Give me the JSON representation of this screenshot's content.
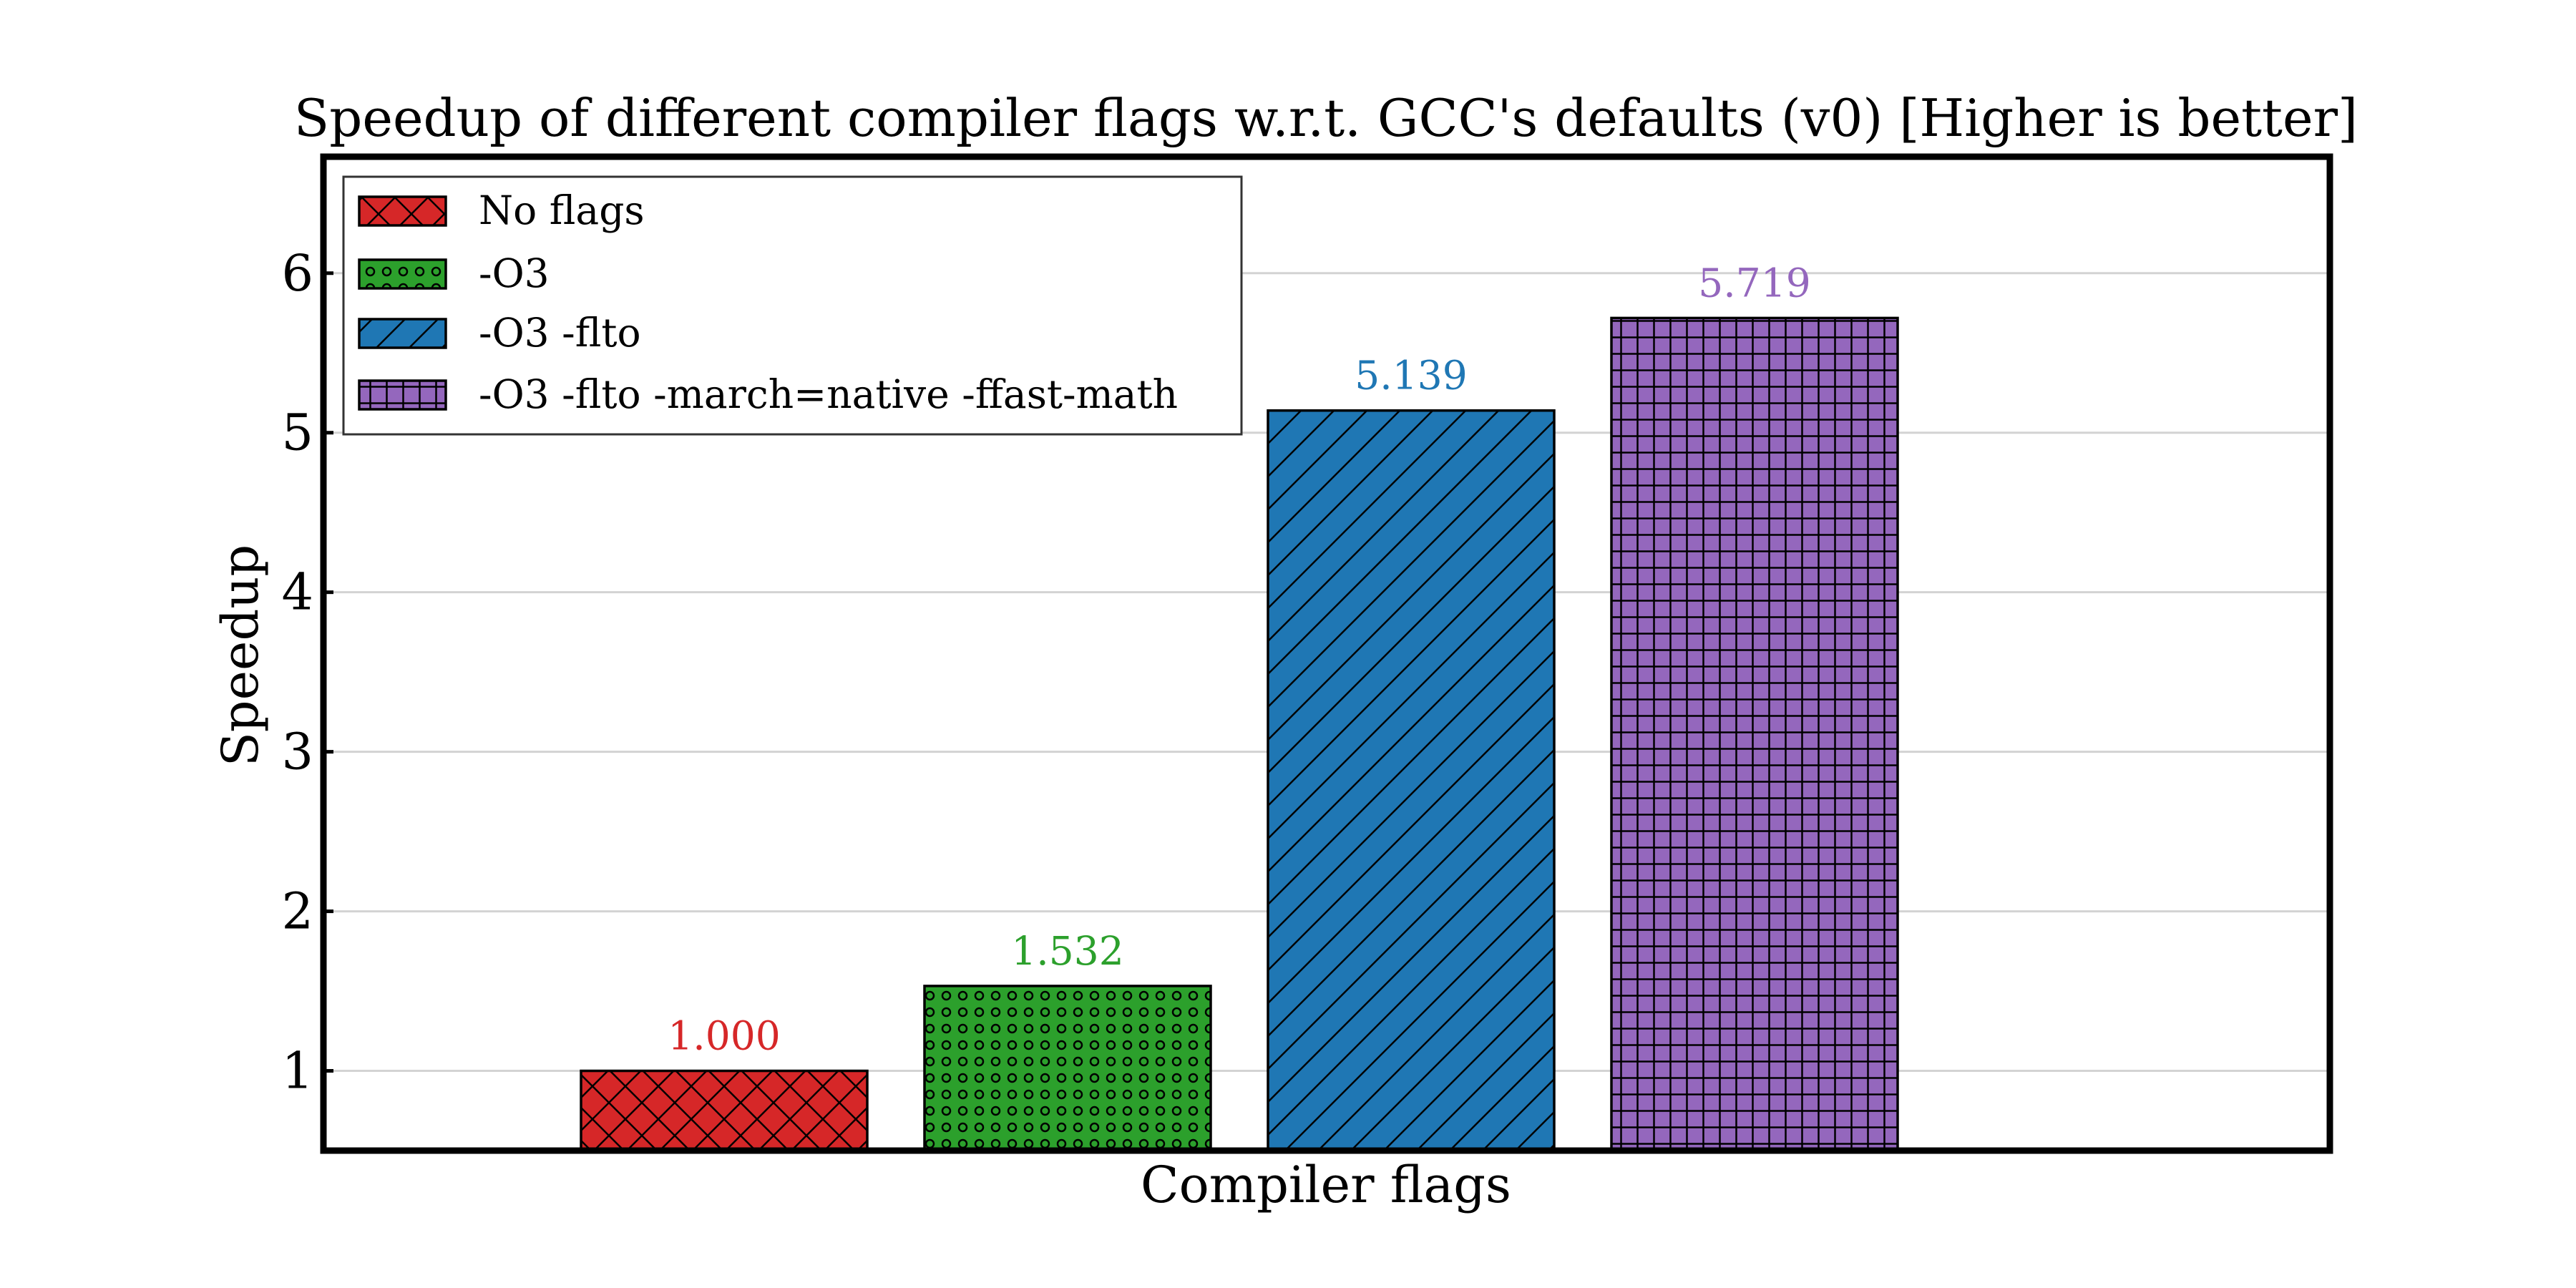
{
  "chart_data": {
    "type": "bar",
    "title": "Speedup of different compiler flags w.r.t. GCC's defaults (v0) [Higher is better]",
    "xlabel": "Compiler flags",
    "ylabel": "Speedup",
    "ylim": [
      0.5,
      6.73
    ],
    "yticks": [
      1,
      2,
      3,
      4,
      5,
      6
    ],
    "grid": "y",
    "legend_placement": "upper-left",
    "series": [
      {
        "name": "No flags",
        "value": 1.0,
        "label": "1.000",
        "color": "#d62728",
        "hatch": "x"
      },
      {
        "name": "-O3",
        "value": 1.532,
        "label": "1.532",
        "color": "#2ca02c",
        "hatch": "o"
      },
      {
        "name": "-O3 -flto",
        "value": 5.139,
        "label": "5.139",
        "color": "#1f77b4",
        "hatch": "/"
      },
      {
        "name": "-O3 -flto -march=native -ffast-math",
        "value": 5.719,
        "label": "5.719",
        "color": "#9467bd",
        "hatch": "+"
      }
    ]
  }
}
